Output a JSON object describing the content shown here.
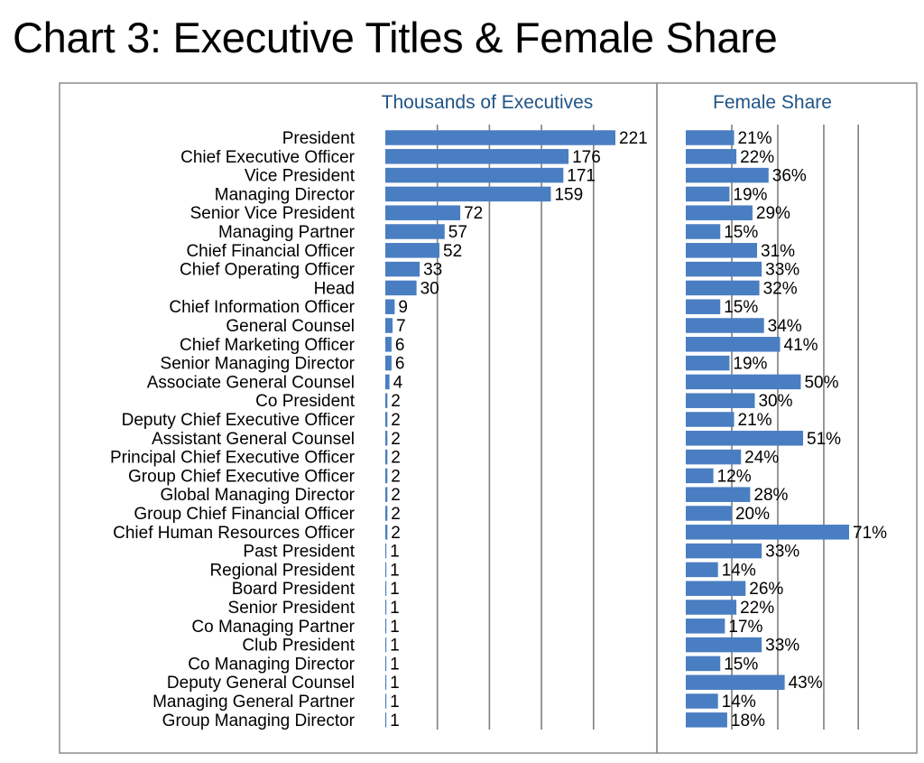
{
  "title": "Chart 3: Executive Titles & Female Share",
  "colors": {
    "bar": "#4a7ec2",
    "header_text": "#1f5486",
    "grid": "#7f7f7f",
    "border": "#8c8c8c"
  },
  "chart_data": [
    {
      "type": "bar",
      "orientation": "horizontal",
      "title": "Thousands of Executives",
      "categories": [
        "President",
        "Chief Executive Officer",
        "Vice President",
        "Managing Director",
        "Senior Vice President",
        "Managing Partner",
        "Chief Financial Officer",
        "Chief Operating Officer",
        "Head",
        "Chief Information Officer",
        "General Counsel",
        "Chief Marketing Officer",
        "Senior Managing Director",
        "Associate General Counsel",
        "Co President",
        "Deputy Chief Executive Officer",
        "Assistant General Counsel",
        "Principal Chief Executive Officer",
        "Group Chief Executive Officer",
        "Global Managing Director",
        "Group Chief Financial Officer",
        "Chief Human Resources Officer",
        "Past President",
        "Regional President",
        "Board President",
        "Senior President",
        "Co Managing Partner",
        "Club President",
        "Co Managing Director",
        "Deputy General Counsel",
        "Managing General Partner",
        "Group Managing Director"
      ],
      "values": [
        221,
        176,
        171,
        159,
        72,
        57,
        52,
        33,
        30,
        9,
        7,
        6,
        6,
        4,
        2,
        2,
        2,
        2,
        2,
        2,
        2,
        2,
        1,
        1,
        1,
        1,
        1,
        1,
        1,
        1,
        1,
        1
      ],
      "xlim": [
        0,
        250
      ],
      "grid": true,
      "data_labels": true
    },
    {
      "type": "bar",
      "orientation": "horizontal",
      "title": "Female Share",
      "categories": [
        "President",
        "Chief Executive Officer",
        "Vice President",
        "Managing Director",
        "Senior Vice President",
        "Managing Partner",
        "Chief Financial Officer",
        "Chief Operating Officer",
        "Head",
        "Chief Information Officer",
        "General Counsel",
        "Chief Marketing Officer",
        "Senior Managing Director",
        "Associate General Counsel",
        "Co President",
        "Deputy Chief Executive Officer",
        "Assistant General Counsel",
        "Principal Chief Executive Officer",
        "Group Chief Executive Officer",
        "Global Managing Director",
        "Group Chief Financial Officer",
        "Chief Human Resources Officer",
        "Past President",
        "Regional President",
        "Board President",
        "Senior President",
        "Co Managing Partner",
        "Club President",
        "Co Managing Director",
        "Deputy General Counsel",
        "Managing General Partner",
        "Group Managing Director"
      ],
      "values": [
        21,
        22,
        36,
        19,
        29,
        15,
        31,
        33,
        32,
        15,
        34,
        41,
        19,
        50,
        30,
        21,
        51,
        24,
        12,
        28,
        20,
        71,
        33,
        14,
        26,
        22,
        17,
        33,
        15,
        43,
        14,
        18
      ],
      "value_suffix": "%",
      "xlim": [
        0,
        80
      ],
      "grid": true,
      "data_labels": true
    }
  ]
}
